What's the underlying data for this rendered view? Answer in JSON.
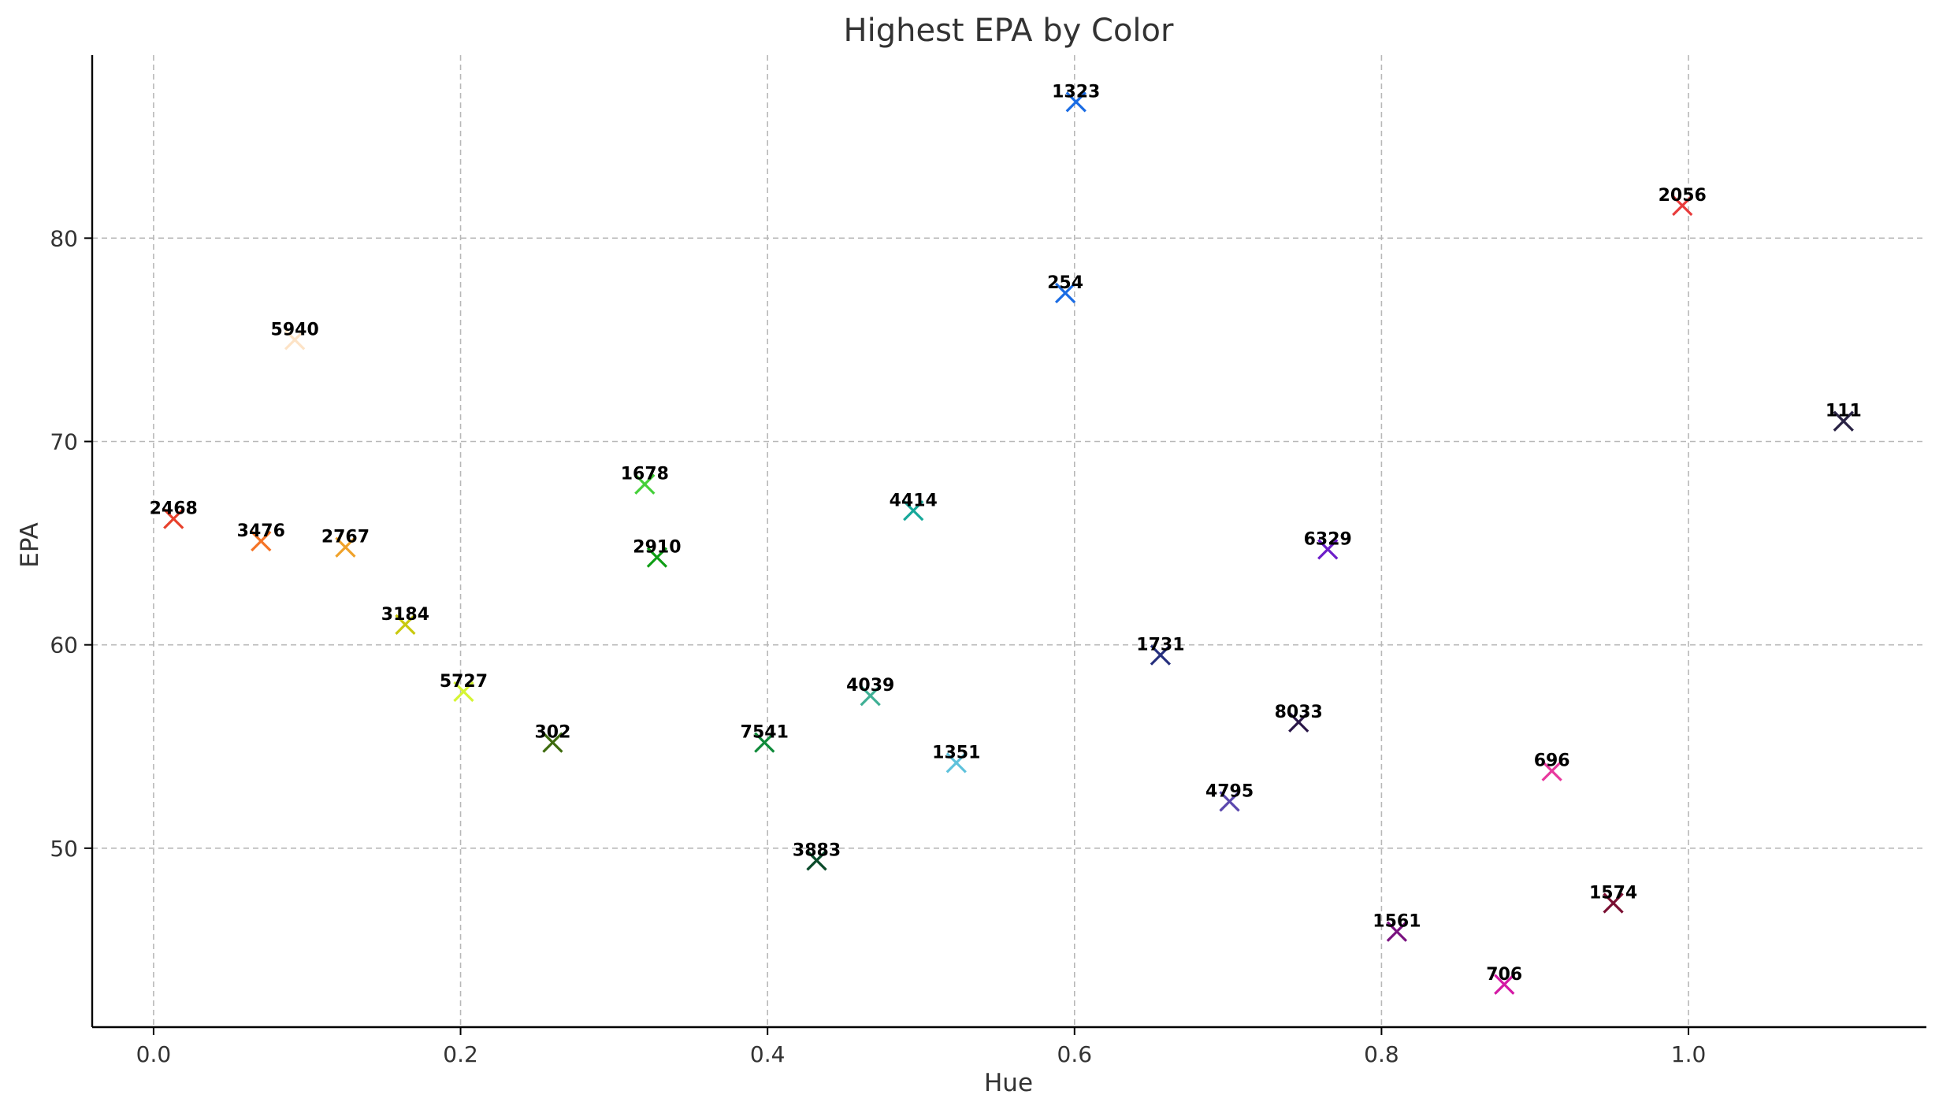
{
  "chart_data": {
    "type": "scatter",
    "title": "Highest EPA by Color",
    "xlabel": "Hue",
    "ylabel": "EPA",
    "xlim": [
      -0.04,
      1.155
    ],
    "ylim": [
      41.2,
      89.0
    ],
    "xticks": [
      0.0,
      0.2,
      0.4,
      0.6,
      0.8,
      1.0
    ],
    "xtick_labels": [
      "0.0",
      "0.2",
      "0.4",
      "0.6",
      "0.8",
      "1.0"
    ],
    "yticks": [
      50,
      60,
      70,
      80
    ],
    "ytick_labels": [
      "50",
      "60",
      "70",
      "80"
    ],
    "grid": true,
    "marker": "x",
    "points": [
      {
        "label": "2468",
        "x": 0.013,
        "y": 66.2,
        "color": "#e8412c"
      },
      {
        "label": "3476",
        "x": 0.07,
        "y": 65.1,
        "color": "#f57426"
      },
      {
        "label": "5940",
        "x": 0.092,
        "y": 75.0,
        "color": "#fde3c6"
      },
      {
        "label": "2767",
        "x": 0.125,
        "y": 64.8,
        "color": "#f0a22a"
      },
      {
        "label": "3184",
        "x": 0.164,
        "y": 61.0,
        "color": "#c9c90f"
      },
      {
        "label": "5727",
        "x": 0.202,
        "y": 57.7,
        "color": "#d6f534"
      },
      {
        "label": "302",
        "x": 0.26,
        "y": 55.2,
        "color": "#3e6b0e"
      },
      {
        "label": "1678",
        "x": 0.32,
        "y": 67.9,
        "color": "#45d03a"
      },
      {
        "label": "2910",
        "x": 0.328,
        "y": 64.3,
        "color": "#0f9e16"
      },
      {
        "label": "7541",
        "x": 0.398,
        "y": 55.2,
        "color": "#0f8a3a"
      },
      {
        "label": "3883",
        "x": 0.432,
        "y": 49.4,
        "color": "#0a4a2a"
      },
      {
        "label": "4039",
        "x": 0.467,
        "y": 57.5,
        "color": "#3fb095"
      },
      {
        "label": "4414",
        "x": 0.495,
        "y": 66.6,
        "color": "#17a89a"
      },
      {
        "label": "1351",
        "x": 0.523,
        "y": 54.2,
        "color": "#5ec2dc"
      },
      {
        "label": "254",
        "x": 0.594,
        "y": 77.3,
        "color": "#1a6ce4"
      },
      {
        "label": "1323",
        "x": 0.601,
        "y": 86.7,
        "color": "#1a6ce4"
      },
      {
        "label": "1731",
        "x": 0.656,
        "y": 59.5,
        "color": "#26307e"
      },
      {
        "label": "4795",
        "x": 0.701,
        "y": 52.3,
        "color": "#5a47ad"
      },
      {
        "label": "8033",
        "x": 0.746,
        "y": 56.2,
        "color": "#2a1748"
      },
      {
        "label": "6329",
        "x": 0.765,
        "y": 64.7,
        "color": "#6d1ec9"
      },
      {
        "label": "1561",
        "x": 0.81,
        "y": 45.9,
        "color": "#7a1280"
      },
      {
        "label": "706",
        "x": 0.88,
        "y": 43.3,
        "color": "#d41aa5"
      },
      {
        "label": "696",
        "x": 0.911,
        "y": 53.8,
        "color": "#e8389d"
      },
      {
        "label": "1574",
        "x": 0.951,
        "y": 47.3,
        "color": "#7a0f32"
      },
      {
        "label": "2056",
        "x": 0.996,
        "y": 81.6,
        "color": "#e83c3c"
      },
      {
        "label": "111",
        "x": 1.101,
        "y": 71.0,
        "color": "#2a2345"
      }
    ]
  }
}
